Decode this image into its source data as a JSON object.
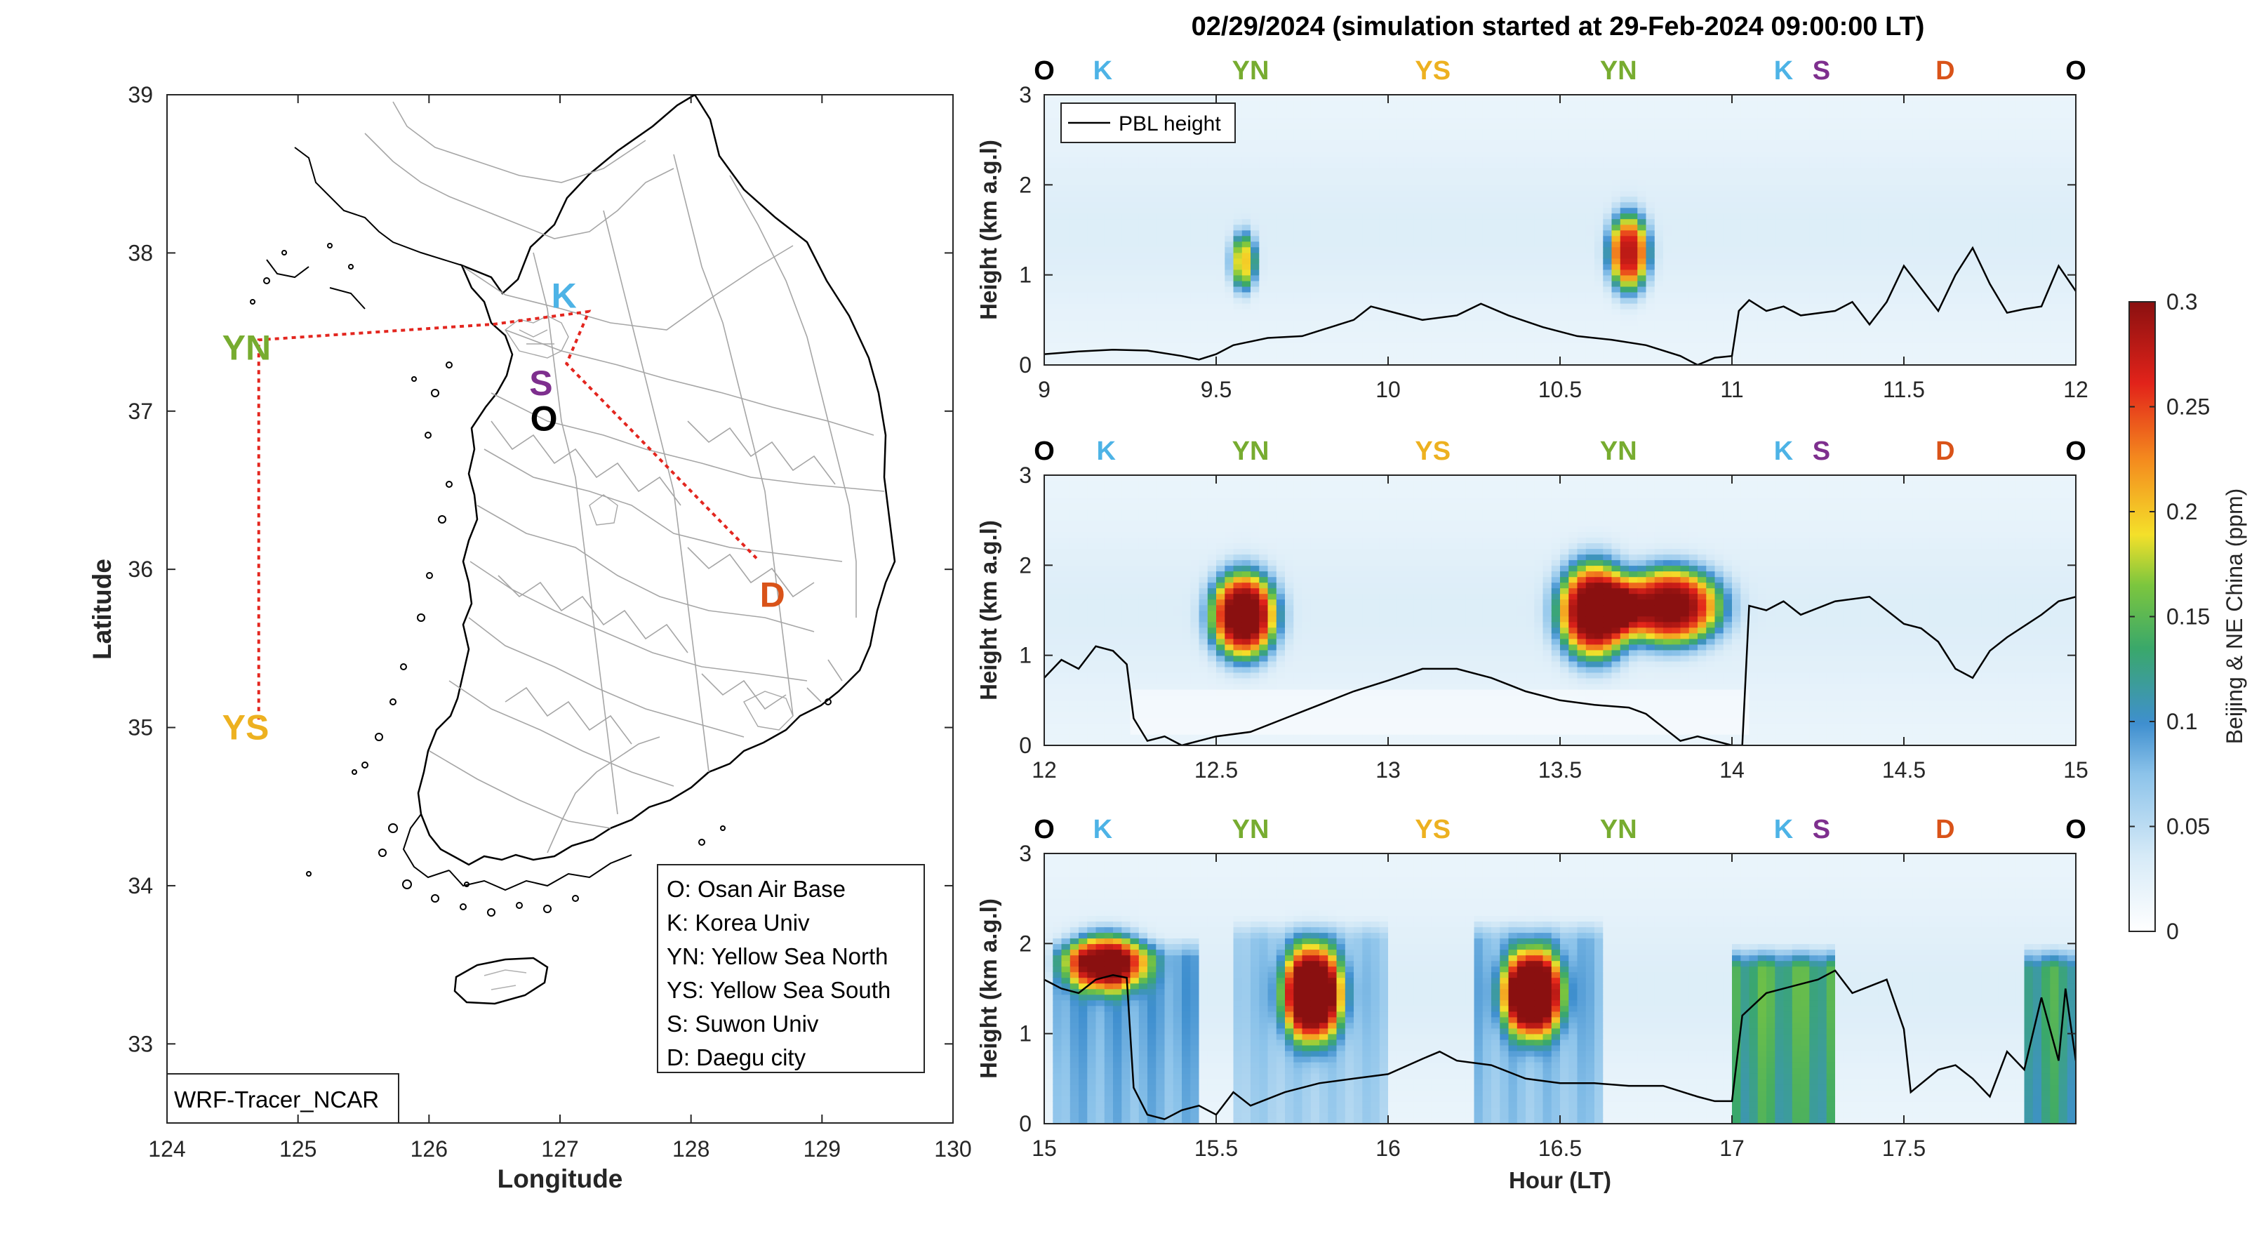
{
  "figure_title": "02/29/2024 (simulation started at 29-Feb-2024 09:00:00 LT)",
  "colors": {
    "O": "#000000",
    "K": "#4db3e6",
    "YN": "#77ac30",
    "YS": "#edb120",
    "S": "#7e2f8e",
    "D": "#d95319"
  },
  "map": {
    "xlabel": "Longitude",
    "ylabel": "Latitude",
    "xlim": [
      124,
      130
    ],
    "ylim": [
      32.5,
      39
    ],
    "xticks": [
      "124",
      "125",
      "126",
      "127",
      "128",
      "129",
      "130"
    ],
    "yticks": [
      "33",
      "34",
      "35",
      "36",
      "37",
      "38",
      "39"
    ],
    "tag": "WRF-Tracer_NCAR",
    "sites": [
      {
        "code": "YN",
        "lon": 124.7,
        "lat": 37.45
      },
      {
        "code": "K",
        "lon": 127.03,
        "lat": 37.6
      },
      {
        "code": "S",
        "lon": 126.98,
        "lat": 37.27
      },
      {
        "code": "O",
        "lon": 127.03,
        "lat": 37.08
      },
      {
        "code": "YS",
        "lon": 124.7,
        "lat": 35.05
      },
      {
        "code": "D",
        "lon": 128.6,
        "lat": 35.87
      }
    ],
    "track": [
      {
        "lon": 124.7,
        "lat": 35.05
      },
      {
        "lon": 124.7,
        "lat": 37.45
      },
      {
        "lon": 126.5,
        "lat": 37.55
      },
      {
        "lon": 127.22,
        "lat": 37.63
      },
      {
        "lon": 127.05,
        "lat": 37.3
      },
      {
        "lon": 128.5,
        "lat": 36.07
      }
    ],
    "legend_lines": [
      "O: Osan Air Base",
      "K: Korea Univ",
      "YN: Yellow Sea North",
      "YS: Yellow Sea South",
      "S: Suwon Univ",
      "D: Daegu city"
    ]
  },
  "chart_data": [
    {
      "type": "heatmap",
      "xlim": [
        9,
        12
      ],
      "ylim": [
        0,
        3
      ],
      "xticks": [
        "9",
        "9.5",
        "10",
        "10.5",
        "11",
        "11.5",
        "12"
      ],
      "yticks": [
        "0",
        "1",
        "2",
        "3"
      ],
      "ylabel": "Height (km a.g.l)",
      "site_marks": [
        {
          "code": "O",
          "x": 9.0
        },
        {
          "code": "K",
          "x": 9.17
        },
        {
          "code": "YN",
          "x": 9.6
        },
        {
          "code": "YS",
          "x": 10.13
        },
        {
          "code": "YN",
          "x": 10.67
        },
        {
          "code": "K",
          "x": 11.15
        },
        {
          "code": "S",
          "x": 11.26
        },
        {
          "code": "D",
          "x": 11.62
        },
        {
          "code": "O",
          "x": 12.0
        }
      ],
      "legend": "PBL height",
      "plumes": [
        {
          "x": 9.58,
          "y": 1.15,
          "sx": 0.035,
          "sy": 0.3,
          "peak": 0.17
        },
        {
          "x": 10.7,
          "y": 1.25,
          "sx": 0.055,
          "sy": 0.4,
          "peak": 0.25
        }
      ],
      "pbl": [
        [
          9,
          0.12
        ],
        [
          9.1,
          0.15
        ],
        [
          9.2,
          0.17
        ],
        [
          9.3,
          0.16
        ],
        [
          9.4,
          0.1
        ],
        [
          9.45,
          0.06
        ],
        [
          9.5,
          0.12
        ],
        [
          9.55,
          0.22
        ],
        [
          9.65,
          0.3
        ],
        [
          9.75,
          0.32
        ],
        [
          9.8,
          0.38
        ],
        [
          9.9,
          0.5
        ],
        [
          9.95,
          0.65
        ],
        [
          10.0,
          0.6
        ],
        [
          10.1,
          0.5
        ],
        [
          10.2,
          0.55
        ],
        [
          10.27,
          0.68
        ],
        [
          10.35,
          0.55
        ],
        [
          10.45,
          0.42
        ],
        [
          10.55,
          0.32
        ],
        [
          10.65,
          0.28
        ],
        [
          10.75,
          0.22
        ],
        [
          10.85,
          0.1
        ],
        [
          10.9,
          0.0
        ],
        [
          10.95,
          0.08
        ],
        [
          11.0,
          0.1
        ],
        [
          11.02,
          0.6
        ],
        [
          11.05,
          0.72
        ],
        [
          11.1,
          0.6
        ],
        [
          11.15,
          0.65
        ],
        [
          11.2,
          0.55
        ],
        [
          11.3,
          0.6
        ],
        [
          11.35,
          0.7
        ],
        [
          11.4,
          0.45
        ],
        [
          11.45,
          0.7
        ],
        [
          11.5,
          1.1
        ],
        [
          11.55,
          0.85
        ],
        [
          11.6,
          0.6
        ],
        [
          11.65,
          1.0
        ],
        [
          11.7,
          1.3
        ],
        [
          11.75,
          0.9
        ],
        [
          11.8,
          0.58
        ],
        [
          11.85,
          0.62
        ],
        [
          11.9,
          0.65
        ],
        [
          11.95,
          1.1
        ],
        [
          12.0,
          0.82
        ]
      ]
    },
    {
      "type": "heatmap",
      "xlim": [
        12,
        15
      ],
      "ylim": [
        0,
        3
      ],
      "xticks": [
        "12",
        "12.5",
        "13",
        "13.5",
        "14",
        "14.5",
        "15"
      ],
      "yticks": [
        "0",
        "1",
        "2",
        "3"
      ],
      "ylabel": "Height (km a.g.l)",
      "site_marks": [
        {
          "code": "O",
          "x": 12.0
        },
        {
          "code": "K",
          "x": 12.18
        },
        {
          "code": "YN",
          "x": 12.6
        },
        {
          "code": "YS",
          "x": 13.13
        },
        {
          "code": "YN",
          "x": 13.67
        },
        {
          "code": "K",
          "x": 14.15
        },
        {
          "code": "S",
          "x": 14.26
        },
        {
          "code": "D",
          "x": 14.62
        },
        {
          "code": "O",
          "x": 15.0
        }
      ],
      "plumes": [
        {
          "x": 12.58,
          "y": 1.45,
          "sx": 0.09,
          "sy": 0.45,
          "peak": 0.3
        },
        {
          "x": 13.6,
          "y": 1.5,
          "sx": 0.1,
          "sy": 0.5,
          "peak": 0.3
        },
        {
          "x": 13.82,
          "y": 1.55,
          "sx": 0.14,
          "sy": 0.4,
          "peak": 0.28
        }
      ],
      "pbl": [
        [
          12,
          0.75
        ],
        [
          12.05,
          0.95
        ],
        [
          12.1,
          0.85
        ],
        [
          12.15,
          1.1
        ],
        [
          12.2,
          1.05
        ],
        [
          12.24,
          0.9
        ],
        [
          12.26,
          0.3
        ],
        [
          12.3,
          0.05
        ],
        [
          12.35,
          0.1
        ],
        [
          12.4,
          0.0
        ],
        [
          12.45,
          0.05
        ],
        [
          12.5,
          0.1
        ],
        [
          12.6,
          0.15
        ],
        [
          12.7,
          0.3
        ],
        [
          12.8,
          0.45
        ],
        [
          12.9,
          0.6
        ],
        [
          13.0,
          0.72
        ],
        [
          13.1,
          0.85
        ],
        [
          13.2,
          0.85
        ],
        [
          13.3,
          0.75
        ],
        [
          13.4,
          0.6
        ],
        [
          13.5,
          0.5
        ],
        [
          13.6,
          0.45
        ],
        [
          13.7,
          0.42
        ],
        [
          13.75,
          0.35
        ],
        [
          13.8,
          0.2
        ],
        [
          13.85,
          0.05
        ],
        [
          13.9,
          0.1
        ],
        [
          13.95,
          0.05
        ],
        [
          14.0,
          0.0
        ],
        [
          14.03,
          0.0
        ],
        [
          14.05,
          1.55
        ],
        [
          14.1,
          1.5
        ],
        [
          14.15,
          1.6
        ],
        [
          14.2,
          1.45
        ],
        [
          14.3,
          1.6
        ],
        [
          14.4,
          1.65
        ],
        [
          14.45,
          1.5
        ],
        [
          14.5,
          1.35
        ],
        [
          14.55,
          1.3
        ],
        [
          14.6,
          1.15
        ],
        [
          14.65,
          0.85
        ],
        [
          14.7,
          0.75
        ],
        [
          14.75,
          1.05
        ],
        [
          14.8,
          1.2
        ],
        [
          14.9,
          1.45
        ],
        [
          14.95,
          1.6
        ],
        [
          15.0,
          1.65
        ]
      ]
    },
    {
      "type": "heatmap",
      "xlim": [
        15,
        18
      ],
      "ylim": [
        0,
        3
      ],
      "xticks": [
        "15",
        "15.5",
        "16",
        "16.5",
        "17",
        "17.5"
      ],
      "yticks": [
        "0",
        "1",
        "2",
        "3"
      ],
      "ylabel": "Height (km a.g.l)",
      "xlabel": "Hour (LT)",
      "site_marks": [
        {
          "code": "O",
          "x": 15.0
        },
        {
          "code": "K",
          "x": 15.17
        },
        {
          "code": "YN",
          "x": 15.6
        },
        {
          "code": "YS",
          "x": 16.13
        },
        {
          "code": "YN",
          "x": 16.67
        },
        {
          "code": "K",
          "x": 17.15
        },
        {
          "code": "S",
          "x": 17.26
        },
        {
          "code": "D",
          "x": 17.62
        },
        {
          "code": "O",
          "x": 18.0
        }
      ],
      "plumes": [
        {
          "x": 15.18,
          "y": 1.8,
          "sx": 0.11,
          "sy": 0.3,
          "peak": 0.24
        },
        {
          "x": 15.78,
          "y": 1.45,
          "sx": 0.08,
          "sy": 0.5,
          "peak": 0.3
        },
        {
          "x": 16.42,
          "y": 1.45,
          "sx": 0.08,
          "sy": 0.45,
          "peak": 0.3
        }
      ],
      "columns": [
        {
          "x0": 15.02,
          "x1": 15.45,
          "top": 2.1,
          "level": 0.07
        },
        {
          "x0": 15.55,
          "x1": 16.0,
          "top": 2.3,
          "level": 0.05
        },
        {
          "x0": 16.25,
          "x1": 16.62,
          "top": 2.3,
          "level": 0.06
        },
        {
          "x0": 17.0,
          "x1": 17.3,
          "top": 2.0,
          "level": 0.13
        },
        {
          "x0": 17.85,
          "x1": 17.99,
          "top": 2.0,
          "level": 0.12
        }
      ],
      "pbl": [
        [
          15,
          1.6
        ],
        [
          15.05,
          1.5
        ],
        [
          15.1,
          1.45
        ],
        [
          15.15,
          1.6
        ],
        [
          15.2,
          1.65
        ],
        [
          15.24,
          1.62
        ],
        [
          15.26,
          0.4
        ],
        [
          15.3,
          0.1
        ],
        [
          15.35,
          0.05
        ],
        [
          15.4,
          0.15
        ],
        [
          15.45,
          0.2
        ],
        [
          15.5,
          0.1
        ],
        [
          15.55,
          0.35
        ],
        [
          15.6,
          0.2
        ],
        [
          15.7,
          0.35
        ],
        [
          15.8,
          0.45
        ],
        [
          15.9,
          0.5
        ],
        [
          16.0,
          0.55
        ],
        [
          16.1,
          0.72
        ],
        [
          16.15,
          0.8
        ],
        [
          16.2,
          0.7
        ],
        [
          16.3,
          0.65
        ],
        [
          16.4,
          0.5
        ],
        [
          16.5,
          0.45
        ],
        [
          16.6,
          0.45
        ],
        [
          16.7,
          0.42
        ],
        [
          16.8,
          0.42
        ],
        [
          16.9,
          0.3
        ],
        [
          16.95,
          0.25
        ],
        [
          17.0,
          0.25
        ],
        [
          17.03,
          1.2
        ],
        [
          17.1,
          1.45
        ],
        [
          17.2,
          1.55
        ],
        [
          17.25,
          1.6
        ],
        [
          17.3,
          1.7
        ],
        [
          17.35,
          1.45
        ],
        [
          17.45,
          1.6
        ],
        [
          17.5,
          1.05
        ],
        [
          17.52,
          0.35
        ],
        [
          17.6,
          0.6
        ],
        [
          17.65,
          0.65
        ],
        [
          17.7,
          0.5
        ],
        [
          17.75,
          0.3
        ],
        [
          17.8,
          0.8
        ],
        [
          17.85,
          0.6
        ],
        [
          17.9,
          1.4
        ],
        [
          17.95,
          0.7
        ],
        [
          17.97,
          1.5
        ],
        [
          18.0,
          0.7
        ]
      ]
    }
  ],
  "colorbar": {
    "label": "Beijing & NE China (ppm)",
    "lim": [
      0,
      0.3
    ],
    "ticks": [
      "0",
      "0.05",
      "0.1",
      "0.15",
      "0.2",
      "0.25",
      "0.3"
    ]
  }
}
